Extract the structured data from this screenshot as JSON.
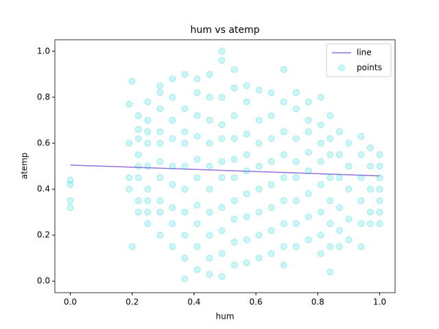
{
  "chart_data": {
    "type": "scatter",
    "title": "hum vs atemp",
    "x_label": "hum",
    "y_label": "atemp",
    "xlim": [
      -0.05,
      1.05
    ],
    "ylim": [
      -0.05,
      1.05
    ],
    "xticks": [
      {
        "value": 0,
        "label": "0.0"
      },
      {
        "value": 0.2,
        "label": "0.2"
      },
      {
        "value": 0.4,
        "label": "0.4"
      },
      {
        "value": 0.6,
        "label": "0.6"
      },
      {
        "value": 0.8,
        "label": "0.8"
      },
      {
        "value": 1,
        "label": "1.0"
      }
    ],
    "yticks": [
      {
        "value": 0,
        "label": "0.0"
      },
      {
        "value": 0.2,
        "label": "0.2"
      },
      {
        "value": 0.4,
        "label": "0.4"
      },
      {
        "value": 0.6,
        "label": "0.6"
      },
      {
        "value": 0.8,
        "label": "0.8"
      },
      {
        "value": 1,
        "label": "1.0"
      }
    ],
    "legend": "upper right",
    "series": [
      {
        "name": "line",
        "style": "line",
        "color": "#9370db",
        "x": [
          0,
          1
        ],
        "y": [
          0.505,
          0.458
        ]
      },
      {
        "name": "points",
        "style": "points",
        "color": "#00ced1",
        "x": [
          0,
          0,
          0,
          0,
          0.19,
          0.19,
          0.19,
          0.19,
          0.2,
          0.2,
          0.22,
          0.22,
          0.22,
          0.22,
          0.22,
          0.22,
          0.22,
          0.22,
          0.25,
          0.25,
          0.25,
          0.25,
          0.25,
          0.25,
          0.25,
          0.25,
          0.25,
          0.29,
          0.29,
          0.29,
          0.29,
          0.29,
          0.29,
          0.29,
          0.29,
          0.29,
          0.29,
          0.33,
          0.33,
          0.33,
          0.33,
          0.33,
          0.33,
          0.33,
          0.33,
          0.33,
          0.37,
          0.37,
          0.37,
          0.37,
          0.37,
          0.37,
          0.37,
          0.37,
          0.37,
          0.37,
          0.41,
          0.41,
          0.41,
          0.41,
          0.41,
          0.41,
          0.41,
          0.41,
          0.41,
          0.41,
          0.45,
          0.45,
          0.45,
          0.45,
          0.45,
          0.45,
          0.45,
          0.45,
          0.45,
          0.45,
          0.49,
          0.49,
          0.49,
          0.49,
          0.49,
          0.49,
          0.49,
          0.49,
          0.49,
          0.49,
          0.49,
          0.53,
          0.53,
          0.53,
          0.53,
          0.53,
          0.53,
          0.53,
          0.53,
          0.53,
          0.53,
          0.57,
          0.57,
          0.57,
          0.57,
          0.57,
          0.57,
          0.57,
          0.57,
          0.57,
          0.61,
          0.61,
          0.61,
          0.61,
          0.61,
          0.61,
          0.61,
          0.61,
          0.65,
          0.65,
          0.65,
          0.65,
          0.65,
          0.65,
          0.65,
          0.65,
          0.69,
          0.69,
          0.69,
          0.69,
          0.69,
          0.69,
          0.69,
          0.69,
          0.69,
          0.73,
          0.73,
          0.73,
          0.73,
          0.73,
          0.73,
          0.73,
          0.73,
          0.77,
          0.77,
          0.77,
          0.77,
          0.77,
          0.77,
          0.77,
          0.77,
          0.81,
          0.81,
          0.81,
          0.81,
          0.81,
          0.81,
          0.81,
          0.81,
          0.84,
          0.84,
          0.84,
          0.84,
          0.84,
          0.84,
          0.84,
          0.84,
          0.87,
          0.87,
          0.87,
          0.87,
          0.87,
          0.87,
          0.9,
          0.9,
          0.9,
          0.9,
          0.9,
          0.94,
          0.94,
          0.94,
          0.94,
          0.94,
          0.94,
          0.97,
          0.97,
          0.97,
          0.97,
          0.97,
          1,
          1,
          1,
          1,
          1,
          1,
          1
        ],
        "y": [
          0.32,
          0.35,
          0.42,
          0.44,
          0.4,
          0.45,
          0.6,
          0.77,
          0.87,
          0.15,
          0.3,
          0.35,
          0.45,
          0.5,
          0.55,
          0.62,
          0.66,
          0.72,
          0.25,
          0.3,
          0.35,
          0.4,
          0.5,
          0.6,
          0.65,
          0.7,
          0.78,
          0.2,
          0.3,
          0.35,
          0.45,
          0.52,
          0.6,
          0.65,
          0.75,
          0.82,
          0.85,
          0.15,
          0.25,
          0.32,
          0.42,
          0.5,
          0.62,
          0.7,
          0.8,
          0.88,
          0.01,
          0.1,
          0.2,
          0.3,
          0.4,
          0.5,
          0.6,
          0.65,
          0.75,
          0.9,
          0.05,
          0.15,
          0.25,
          0.33,
          0.45,
          0.53,
          0.63,
          0.72,
          0.82,
          0.88,
          0.03,
          0.1,
          0.2,
          0.3,
          0.4,
          0.5,
          0.6,
          0.7,
          0.8,
          0.9,
          0.02,
          0.12,
          0.22,
          0.32,
          0.45,
          0.52,
          0.62,
          0.68,
          0.8,
          0.96,
          1.0,
          0.07,
          0.17,
          0.27,
          0.35,
          0.45,
          0.53,
          0.62,
          0.72,
          0.84,
          0.92,
          0.08,
          0.18,
          0.28,
          0.38,
          0.48,
          0.55,
          0.64,
          0.78,
          0.85,
          0.1,
          0.2,
          0.3,
          0.4,
          0.5,
          0.6,
          0.7,
          0.83,
          0.12,
          0.22,
          0.32,
          0.42,
          0.52,
          0.62,
          0.72,
          0.82,
          0.07,
          0.15,
          0.25,
          0.35,
          0.45,
          0.55,
          0.65,
          0.78,
          0.92,
          0.15,
          0.25,
          0.35,
          0.45,
          0.52,
          0.62,
          0.75,
          0.82,
          0.18,
          0.28,
          0.38,
          0.48,
          0.56,
          0.65,
          0.7,
          0.78,
          0.12,
          0.2,
          0.3,
          0.42,
          0.52,
          0.6,
          0.68,
          0.8,
          0.04,
          0.15,
          0.25,
          0.35,
          0.45,
          0.55,
          0.62,
          0.72,
          0.15,
          0.22,
          0.32,
          0.45,
          0.55,
          0.65,
          0.18,
          0.27,
          0.4,
          0.5,
          0.6,
          0.15,
          0.25,
          0.35,
          0.45,
          0.55,
          0.63,
          0.25,
          0.3,
          0.4,
          0.5,
          0.58,
          0.25,
          0.3,
          0.35,
          0.4,
          0.45,
          0.5,
          0.55
        ]
      }
    ]
  }
}
